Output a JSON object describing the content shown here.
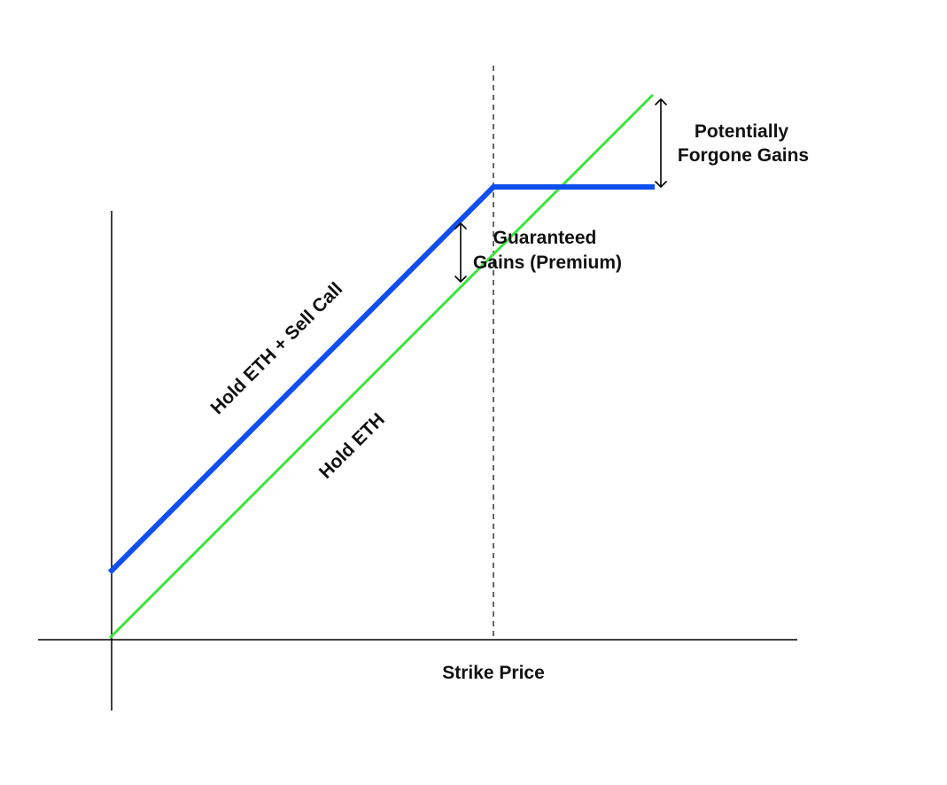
{
  "diagram": {
    "labels": {
      "covered_call_line": "Hold ETH + Sell Call",
      "hold_eth_line": "Hold ETH",
      "guaranteed_gains_line1": "Guaranteed",
      "guaranteed_gains_line2": "Gains (Premium)",
      "forgone_gains_line1": "Potentially",
      "forgone_gains_line2": "Forgone Gains",
      "strike_price": "Strike Price"
    },
    "colors": {
      "covered_call_line": "#0f4ff0",
      "hold_eth_line": "#3ce23c",
      "axes": "#000000",
      "strike_marker": "#000000",
      "arrows": "#000000",
      "text": "#111111"
    }
  }
}
